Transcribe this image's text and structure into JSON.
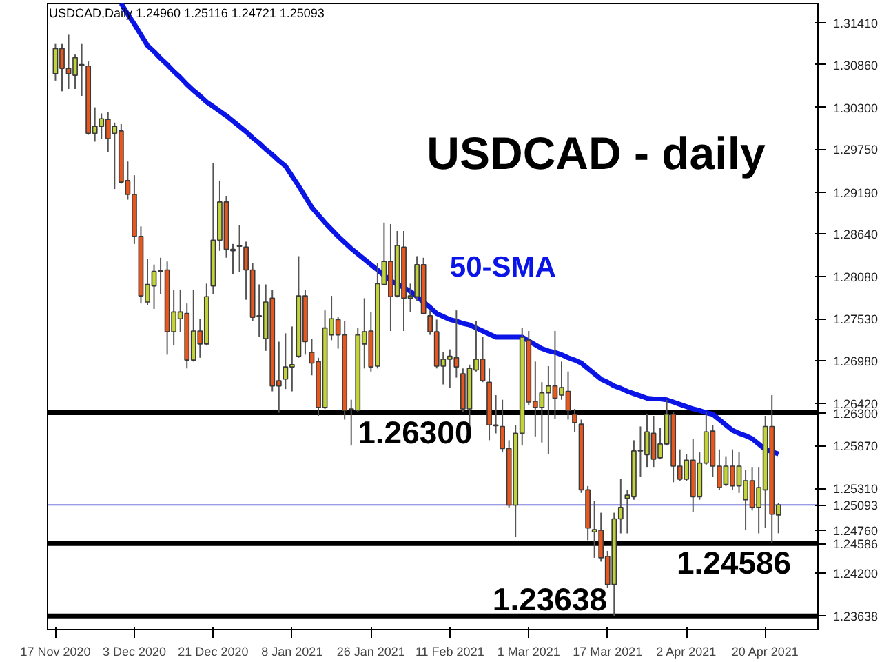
{
  "chart_data": {
    "type": "candlestick",
    "title": "USDCAD - daily",
    "annotations": [
      "USDCAD,Daily  1.24960 1.25116 1.24721 1.25093"
    ],
    "categories": [
      "17 Nov 2020",
      null,
      null,
      null,
      null,
      null,
      null,
      null,
      null,
      null,
      null,
      null,
      "3 Dec 2020",
      null,
      null,
      null,
      null,
      null,
      null,
      null,
      null,
      null,
      null,
      null,
      "21 Dec 2020",
      null,
      null,
      null,
      null,
      null,
      null,
      null,
      null,
      null,
      null,
      null,
      "8 Jan 2021",
      null,
      null,
      null,
      null,
      null,
      null,
      null,
      null,
      null,
      null,
      null,
      "26 Jan 2021",
      null,
      null,
      null,
      null,
      null,
      null,
      null,
      null,
      null,
      null,
      null,
      "11 Feb 2021",
      null,
      null,
      null,
      null,
      null,
      null,
      null,
      null,
      null,
      null,
      null,
      "1 Mar 2021",
      null,
      null,
      null,
      null,
      null,
      null,
      null,
      null,
      null,
      null,
      null,
      "17 Mar 2021",
      null,
      null,
      null,
      null,
      null,
      null,
      null,
      null,
      null,
      null,
      null,
      "2 Apr 2021",
      null,
      null,
      null,
      null,
      null,
      null,
      null,
      null,
      null,
      null,
      null,
      "20 Apr 2021",
      null,
      null
    ],
    "ohlc": [
      [
        1.3074,
        1.3113,
        1.3065,
        1.3107
      ],
      [
        1.3107,
        1.3113,
        1.3051,
        1.3081
      ],
      [
        1.3081,
        1.3125,
        1.3054,
        1.3074
      ],
      [
        1.3072,
        1.3099,
        1.3054,
        1.3095
      ],
      [
        1.3086,
        1.3113,
        1.3045,
        1.3085
      ],
      [
        1.3084,
        1.309,
        1.2994,
        1.2996
      ],
      [
        1.2996,
        1.303,
        1.2985,
        1.3005
      ],
      [
        1.3005,
        1.3022,
        1.2989,
        1.3015
      ],
      [
        1.3014,
        1.3024,
        1.2971,
        1.2989
      ],
      [
        1.2996,
        1.301,
        1.2923,
        1.3005
      ],
      [
        1.2999,
        1.3008,
        1.293,
        1.2932
      ],
      [
        1.2934,
        1.2959,
        1.2909,
        1.2916
      ],
      [
        1.2916,
        1.2941,
        1.2851,
        1.2861
      ],
      [
        1.2861,
        1.2874,
        1.2773,
        1.2783
      ],
      [
        1.2775,
        1.2831,
        1.2771,
        1.2798
      ],
      [
        1.2796,
        1.2824,
        1.2766,
        1.2815
      ],
      [
        1.2815,
        1.2833,
        1.2785,
        1.2816
      ],
      [
        1.2817,
        1.2828,
        1.2706,
        1.2736
      ],
      [
        1.2736,
        1.2791,
        1.2718,
        1.2762
      ],
      [
        1.2753,
        1.2791,
        1.2736,
        1.2762
      ],
      [
        1.276,
        1.2773,
        1.2688,
        1.2699
      ],
      [
        1.2699,
        1.2791,
        1.2697,
        1.2737
      ],
      [
        1.2737,
        1.2753,
        1.2702,
        1.272
      ],
      [
        1.272,
        1.2799,
        1.2718,
        1.2782
      ],
      [
        1.2796,
        1.2957,
        1.2785,
        1.2856
      ],
      [
        1.2856,
        1.2934,
        1.2842,
        1.2906
      ],
      [
        1.2906,
        1.2914,
        1.2833,
        1.2844
      ],
      [
        1.2844,
        1.2851,
        1.2812,
        1.2842
      ],
      [
        1.2849,
        1.2876,
        1.2814,
        1.2848
      ],
      [
        1.2847,
        1.2854,
        1.2778,
        1.2817
      ],
      [
        1.2817,
        1.2826,
        1.275,
        1.2755
      ],
      [
        1.2757,
        1.2798,
        1.2729,
        1.2756
      ],
      [
        1.2727,
        1.2798,
        1.2711,
        1.2775
      ],
      [
        1.278,
        1.2791,
        1.2658,
        1.2665
      ],
      [
        1.2672,
        1.2723,
        1.263,
        1.2665
      ],
      [
        1.2674,
        1.2734,
        1.2661,
        1.269
      ],
      [
        1.269,
        1.2743,
        1.2658,
        1.2693
      ],
      [
        1.2704,
        1.2835,
        1.2702,
        1.2783
      ],
      [
        1.2783,
        1.2791,
        1.2706,
        1.2723
      ],
      [
        1.2709,
        1.2727,
        1.2679,
        1.2695
      ],
      [
        1.2697,
        1.2702,
        1.2626,
        1.2637
      ],
      [
        1.2637,
        1.2764,
        1.2635,
        1.2741
      ],
      [
        1.2732,
        1.2783,
        1.2725,
        1.2753
      ],
      [
        1.2752,
        1.2755,
        1.2714,
        1.2732
      ],
      [
        1.2732,
        1.275,
        1.2621,
        1.2633
      ],
      [
        1.2634,
        1.2647,
        1.2587,
        1.2635
      ],
      [
        1.2633,
        1.2741,
        1.2631,
        1.2732
      ],
      [
        1.272,
        1.278,
        1.2688,
        1.2736
      ],
      [
        1.2737,
        1.2762,
        1.2684,
        1.269
      ],
      [
        1.2691,
        1.2826,
        1.2688,
        1.2799
      ],
      [
        1.2798,
        1.2879,
        1.2797,
        1.2828
      ],
      [
        1.2828,
        1.2877,
        1.2737,
        1.2782
      ],
      [
        1.2783,
        1.2868,
        1.2781,
        1.2849
      ],
      [
        1.2847,
        1.2868,
        1.2737,
        1.278
      ],
      [
        1.278,
        1.2799,
        1.2762,
        1.2783
      ],
      [
        1.2782,
        1.2835,
        1.2776,
        1.2824
      ],
      [
        1.2824,
        1.2833,
        1.2759,
        1.276
      ],
      [
        1.2757,
        1.2764,
        1.2732,
        1.2736
      ],
      [
        1.2736,
        1.2752,
        1.2688,
        1.2691
      ],
      [
        1.2691,
        1.2709,
        1.2667,
        1.27
      ],
      [
        1.27,
        1.2713,
        1.2663,
        1.2704
      ],
      [
        1.2702,
        1.2764,
        1.2676,
        1.269
      ],
      [
        1.2681,
        1.2688,
        1.2631,
        1.2635
      ],
      [
        1.2635,
        1.2693,
        1.261,
        1.2688
      ],
      [
        1.2686,
        1.275,
        1.2684,
        1.27
      ],
      [
        1.27,
        1.2729,
        1.267,
        1.2672
      ],
      [
        1.267,
        1.2688,
        1.2594,
        1.2614
      ],
      [
        1.2614,
        1.2653,
        1.2603,
        1.2613
      ],
      [
        1.2612,
        1.2647,
        1.2578,
        1.2583
      ],
      [
        1.2583,
        1.2594,
        1.2506,
        1.2509
      ],
      [
        1.2509,
        1.2614,
        1.2467,
        1.2603
      ],
      [
        1.2603,
        1.2741,
        1.2587,
        1.2729
      ],
      [
        1.2725,
        1.2737,
        1.264,
        1.2644
      ],
      [
        1.2645,
        1.2697,
        1.2599,
        1.2637
      ],
      [
        1.2637,
        1.267,
        1.2591,
        1.2656
      ],
      [
        1.2656,
        1.2691,
        1.2576,
        1.2665
      ],
      [
        1.2665,
        1.2737,
        1.2622,
        1.2649
      ],
      [
        1.2653,
        1.2697,
        1.2647,
        1.2663
      ],
      [
        1.2658,
        1.2684,
        1.2621,
        1.2633
      ],
      [
        1.2628,
        1.2635,
        1.2605,
        1.2617
      ],
      [
        1.2615,
        1.2621,
        1.2525,
        1.2529
      ],
      [
        1.2529,
        1.2534,
        1.2463,
        1.2479
      ],
      [
        1.2474,
        1.2514,
        1.244,
        1.2477
      ],
      [
        1.2476,
        1.2499,
        1.2435,
        1.244
      ],
      [
        1.2442,
        1.2449,
        1.2401,
        1.2405
      ],
      [
        1.2405,
        1.2499,
        1.23638,
        1.2491
      ],
      [
        1.2491,
        1.2543,
        1.2472,
        1.2506
      ],
      [
        1.2518,
        1.2529,
        1.2472,
        1.2522
      ],
      [
        1.252,
        1.2594,
        1.2516,
        1.258
      ],
      [
        1.258,
        1.2612,
        1.2546,
        1.2581
      ],
      [
        1.2575,
        1.2628,
        1.2559,
        1.2605
      ],
      [
        1.2603,
        1.2626,
        1.2559,
        1.2569
      ],
      [
        1.2571,
        1.261,
        1.2569,
        1.2589
      ],
      [
        1.2589,
        1.2647,
        1.2587,
        1.2628
      ],
      [
        1.2628,
        1.2631,
        1.2539,
        1.256
      ],
      [
        1.256,
        1.2582,
        1.2541,
        1.2543
      ],
      [
        1.2543,
        1.2576,
        1.2541,
        1.2568
      ],
      [
        1.2568,
        1.2596,
        1.25,
        1.252
      ],
      [
        1.252,
        1.2578,
        1.2516,
        1.2564
      ],
      [
        1.2564,
        1.2631,
        1.2562,
        1.2605
      ],
      [
        1.2606,
        1.2614,
        1.2546,
        1.256
      ],
      [
        1.256,
        1.2582,
        1.2529,
        1.2532
      ],
      [
        1.2536,
        1.2573,
        1.2534,
        1.256
      ],
      [
        1.256,
        1.2582,
        1.2529,
        1.2534
      ],
      [
        1.2534,
        1.2578,
        1.2525,
        1.256
      ],
      [
        1.2516,
        1.2555,
        1.2476,
        1.2541
      ],
      [
        1.2541,
        1.2559,
        1.2502,
        1.2506
      ],
      [
        1.2506,
        1.2559,
        1.2472,
        1.2532
      ],
      [
        1.2529,
        1.2626,
        1.2479,
        1.2612
      ],
      [
        1.2612,
        1.2653,
        1.2459,
        1.2497
      ],
      [
        1.2496,
        1.25116,
        1.24721,
        1.25093
      ]
    ],
    "series": [
      {
        "type": "line",
        "name": "50-SMA",
        "color": "#0a14e6",
        "values": [
          null,
          null,
          null,
          null,
          null,
          null,
          null,
          null,
          null,
          null,
          1.3166,
          1.3152,
          1.3139,
          1.3125,
          1.3111,
          1.3103,
          1.3094,
          1.3086,
          1.3077,
          1.3069,
          1.306,
          1.3052,
          1.3045,
          1.3037,
          1.3031,
          1.3025,
          1.3019,
          1.3012,
          1.3005,
          1.2998,
          1.299,
          1.2983,
          1.2975,
          1.2968,
          1.296,
          1.2953,
          1.294,
          1.2927,
          1.2913,
          1.2899,
          1.2889,
          1.2879,
          1.287,
          1.2861,
          1.2853,
          1.2845,
          1.2838,
          1.2831,
          1.2824,
          1.2817,
          1.281,
          1.2803,
          1.2798,
          1.2794,
          1.2789,
          1.2782,
          1.2775,
          1.2768,
          1.276,
          1.2756,
          1.2752,
          1.275,
          1.2747,
          1.2745,
          1.2741,
          1.2737,
          1.2733,
          1.2729,
          1.2729,
          1.2729,
          1.2729,
          1.2729,
          1.2724,
          1.2719,
          1.2714,
          1.2711,
          1.2709,
          1.2706,
          1.2702,
          1.2699,
          1.2695,
          1.2688,
          1.2681,
          1.2674,
          1.267,
          1.2665,
          1.2662,
          1.2658,
          1.2655,
          1.2652,
          1.2649,
          1.2648,
          1.2648,
          1.2647,
          1.2644,
          1.2641,
          1.2638,
          1.2635,
          1.2633,
          1.263,
          1.2628,
          1.2621,
          1.2614,
          1.2607,
          1.2603,
          1.26,
          1.2596,
          1.2589,
          1.2582,
          1.2579,
          1.2576
        ]
      }
    ],
    "ylim": [
      1.2346,
      1.3166
    ],
    "yticks": [
      {
        "value": 1.3141,
        "label": "1.31410"
      },
      {
        "value": 1.3086,
        "label": "1.30860"
      },
      {
        "value": 1.303,
        "label": "1.30300"
      },
      {
        "value": 1.2975,
        "label": "1.29750"
      },
      {
        "value": 1.2919,
        "label": "1.29190"
      },
      {
        "value": 1.2864,
        "label": "1.28640"
      },
      {
        "value": 1.2808,
        "label": "1.28080"
      },
      {
        "value": 1.2753,
        "label": "1.27530"
      },
      {
        "value": 1.2698,
        "label": "1.26980"
      },
      {
        "value": 1.2642,
        "label": "1.26420"
      },
      {
        "value": 1.263,
        "label": "1.26300"
      },
      {
        "value": 1.2587,
        "label": "1.25870"
      },
      {
        "value": 1.2531,
        "label": "1.25310"
      },
      {
        "value": 1.25093,
        "label": "1.25093"
      },
      {
        "value": 1.2476,
        "label": "1.24760"
      },
      {
        "value": 1.24586,
        "label": "1.24586"
      },
      {
        "value": 1.242,
        "label": "1.24200"
      },
      {
        "value": 1.23638,
        "label": "1.23638"
      }
    ],
    "ref_lines": [
      {
        "axis": "y",
        "value": 1.263,
        "label": "1.26300",
        "color": "#000000"
      },
      {
        "axis": "y",
        "value": 1.25093,
        "label": null,
        "color": "#7b7bdc"
      },
      {
        "axis": "y",
        "value": 1.24586,
        "label": "1.24586",
        "color": "#000000"
      },
      {
        "axis": "y",
        "value": 1.23638,
        "label": "1.23638",
        "color": "#000000"
      }
    ]
  }
}
